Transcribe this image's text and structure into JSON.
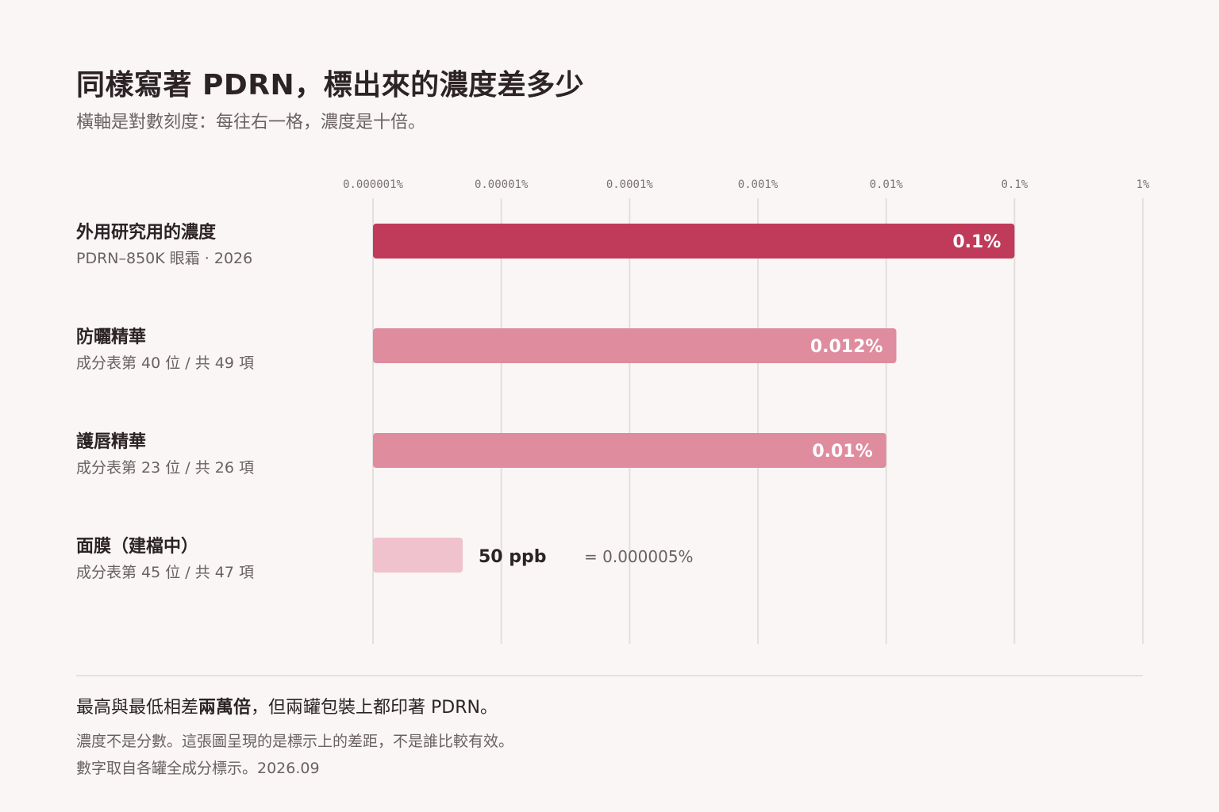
{
  "header": {
    "title": "同樣寫著 PDRN，標出來的濃度差多少",
    "subtitle": "橫軸是對數刻度：每往右一格，濃度是十倍。"
  },
  "chart_data": {
    "type": "bar",
    "orientation": "horizontal",
    "x_scale": "log",
    "x_unit": "%",
    "xlim": [
      1e-06,
      1
    ],
    "ticks": [
      {
        "value": 1e-06,
        "label": "0.000001%"
      },
      {
        "value": 1e-05,
        "label": "0.00001%"
      },
      {
        "value": 0.0001,
        "label": "0.0001%"
      },
      {
        "value": 0.001,
        "label": "0.001%"
      },
      {
        "value": 0.01,
        "label": "0.01%"
      },
      {
        "value": 0.1,
        "label": "0.1%"
      },
      {
        "value": 1,
        "label": "1%"
      }
    ],
    "grid": true,
    "categories": [
      {
        "name": "外用研究用的濃度",
        "sub": "PDRN–850K 眼霜 · 2026",
        "value": 0.1,
        "label": "0.1%",
        "color": "#c03b59"
      },
      {
        "name": "防曬精華",
        "sub": "成分表第 40 位 / 共 49 項",
        "value": 0.012,
        "label": "0.012%",
        "color": "#df8c9f"
      },
      {
        "name": "護唇精華",
        "sub": "成分表第 23 位 / 共 26 項",
        "value": 0.01,
        "label": "0.01%",
        "color": "#df8c9f"
      },
      {
        "name": "面膜（建檔中）",
        "sub": "成分表第 45 位 / 共 47 項",
        "value": 5e-06,
        "label": "50 ppb",
        "equiv_label": "= 0.000005%",
        "color": "#efc2ce"
      }
    ]
  },
  "footer": {
    "main_pre": "最高與最低相差",
    "main_bold": "兩萬倍",
    "main_post": "，但兩罐包裝上都印著 PDRN。",
    "sub1": "濃度不是分數。這張圖呈現的是標示上的差距，不是誰比較有效。",
    "sub2": "數字取自各罐全成分標示。2026.09"
  }
}
